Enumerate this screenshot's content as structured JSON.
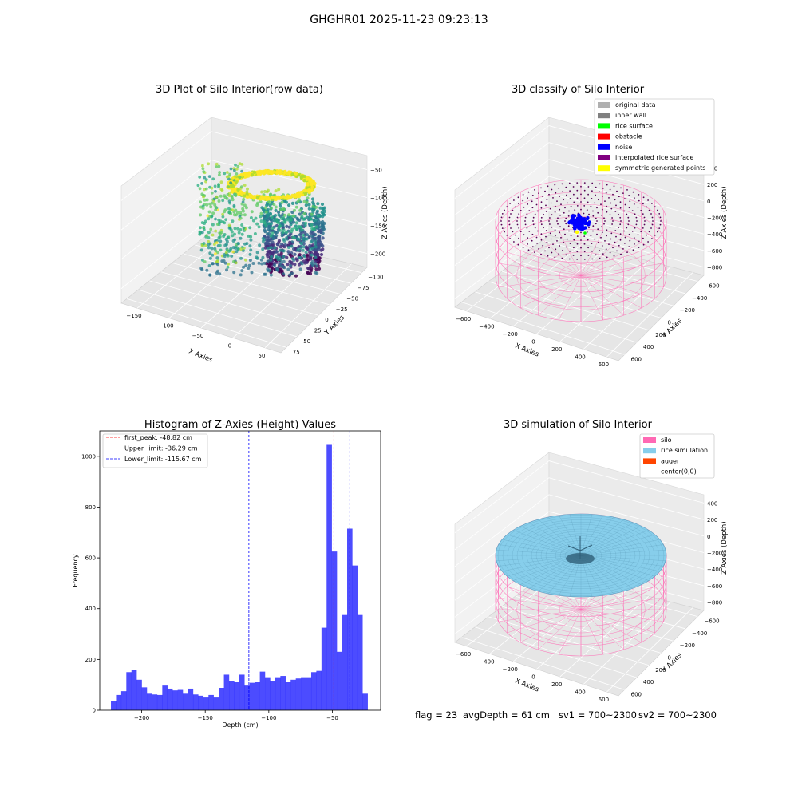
{
  "figure_title": "GHGHR01 2025-11-23 09:23:13",
  "footer": {
    "flag": "flag = 23",
    "avg_depth": "avgDepth = 61 cm",
    "sv1": "sv1 = 700~2300",
    "sv2": "sv2 = 700~2300"
  },
  "chart_data": [
    {
      "type": "scatter3d",
      "title": "3D Plot of Silo Interior(row data)",
      "xlabel": "X Axies",
      "ylabel": "Y Axies",
      "zlabel": "Z Axies (Depth)",
      "x_ticks": [
        "−150",
        "−100",
        "−50",
        "0",
        "50"
      ],
      "y_ticks": [
        "−100",
        "−75",
        "−50",
        "−25",
        "0",
        "25",
        "50",
        "75"
      ],
      "z_ticks": [
        "−50",
        "−100",
        "−150",
        "−200"
      ],
      "colormap": "viridis"
    },
    {
      "type": "scatter3d",
      "title": "3D classify of Silo Interior",
      "xlabel": "X Axies",
      "ylabel": "Y Axies",
      "zlabel": "Z Axies (Depth)",
      "x_ticks": [
        "−600",
        "−400",
        "−200",
        "0",
        "200",
        "400",
        "600"
      ],
      "y_ticks": [
        "−600",
        "−400",
        "−200",
        "0",
        "200",
        "400",
        "600"
      ],
      "z_ticks": [
        "400",
        "200",
        "0",
        "−200",
        "−400",
        "−600",
        "−800"
      ],
      "legend_position": "top-right",
      "legend": [
        {
          "label": "original data",
          "color": "#b0b0b0"
        },
        {
          "label": "inner wall",
          "color": "#808080"
        },
        {
          "label": "rice surface",
          "color": "#00ff00"
        },
        {
          "label": "obstacle",
          "color": "#ff0000"
        },
        {
          "label": "noise",
          "color": "#0000ff"
        },
        {
          "label": "interpolated rice surface",
          "color": "#800080"
        },
        {
          "label": "symmetric generated points",
          "color": "#ffff00"
        }
      ]
    },
    {
      "type": "bar",
      "title": "Histogram of Z-Axies (Height) Values",
      "xlabel": "Depth (cm)",
      "ylabel": "Frequency",
      "xlim": [
        -233,
        -12
      ],
      "ylim": [
        0,
        1100
      ],
      "x_ticks": [
        -200,
        -150,
        -100,
        -50
      ],
      "y_ticks": [
        0,
        200,
        400,
        600,
        800,
        1000
      ],
      "bar_color": "#0000ff",
      "bin_start": -224.2,
      "bin_width": 4.04,
      "values": [
        35,
        60,
        75,
        150,
        160,
        120,
        90,
        65,
        62,
        60,
        97,
        85,
        78,
        80,
        65,
        85,
        62,
        57,
        50,
        60,
        50,
        88,
        140,
        115,
        110,
        140,
        97,
        108,
        110,
        152,
        130,
        115,
        130,
        135,
        110,
        120,
        125,
        130,
        130,
        150,
        155,
        325,
        1045,
        625,
        230,
        375,
        715,
        570,
        375,
        65
      ],
      "vlines": [
        {
          "label": "first_peak: -48.82 cm",
          "x": -48.82,
          "color": "#ff0000"
        },
        {
          "label": "Upper_limit: -36.29 cm",
          "x": -36.29,
          "color": "#0000ff"
        },
        {
          "label": "Lower_limit: -115.67 cm",
          "x": -115.67,
          "color": "#0000ff"
        }
      ],
      "legend_position": "top-left"
    },
    {
      "type": "surface3d",
      "title": "3D simulation of Silo Interior",
      "xlabel": "X Axies",
      "ylabel": "Y Axies",
      "zlabel": "Z Axies (Depth)",
      "x_ticks": [
        "−600",
        "−400",
        "−200",
        "0",
        "200",
        "400",
        "600"
      ],
      "y_ticks": [
        "−600",
        "−400",
        "−200",
        "0",
        "200",
        "400",
        "600"
      ],
      "z_ticks": [
        "400",
        "200",
        "0",
        "−200",
        "−400",
        "−600",
        "−800"
      ],
      "legend_position": "top-right",
      "legend": [
        {
          "label": "silo",
          "color": "#ff69b4"
        },
        {
          "label": "rice simulation",
          "color": "#87ceeb"
        },
        {
          "label": "auger",
          "color": "#ff4500"
        },
        {
          "label": "center(0,0)",
          "color": "#ffffff"
        }
      ]
    }
  ]
}
